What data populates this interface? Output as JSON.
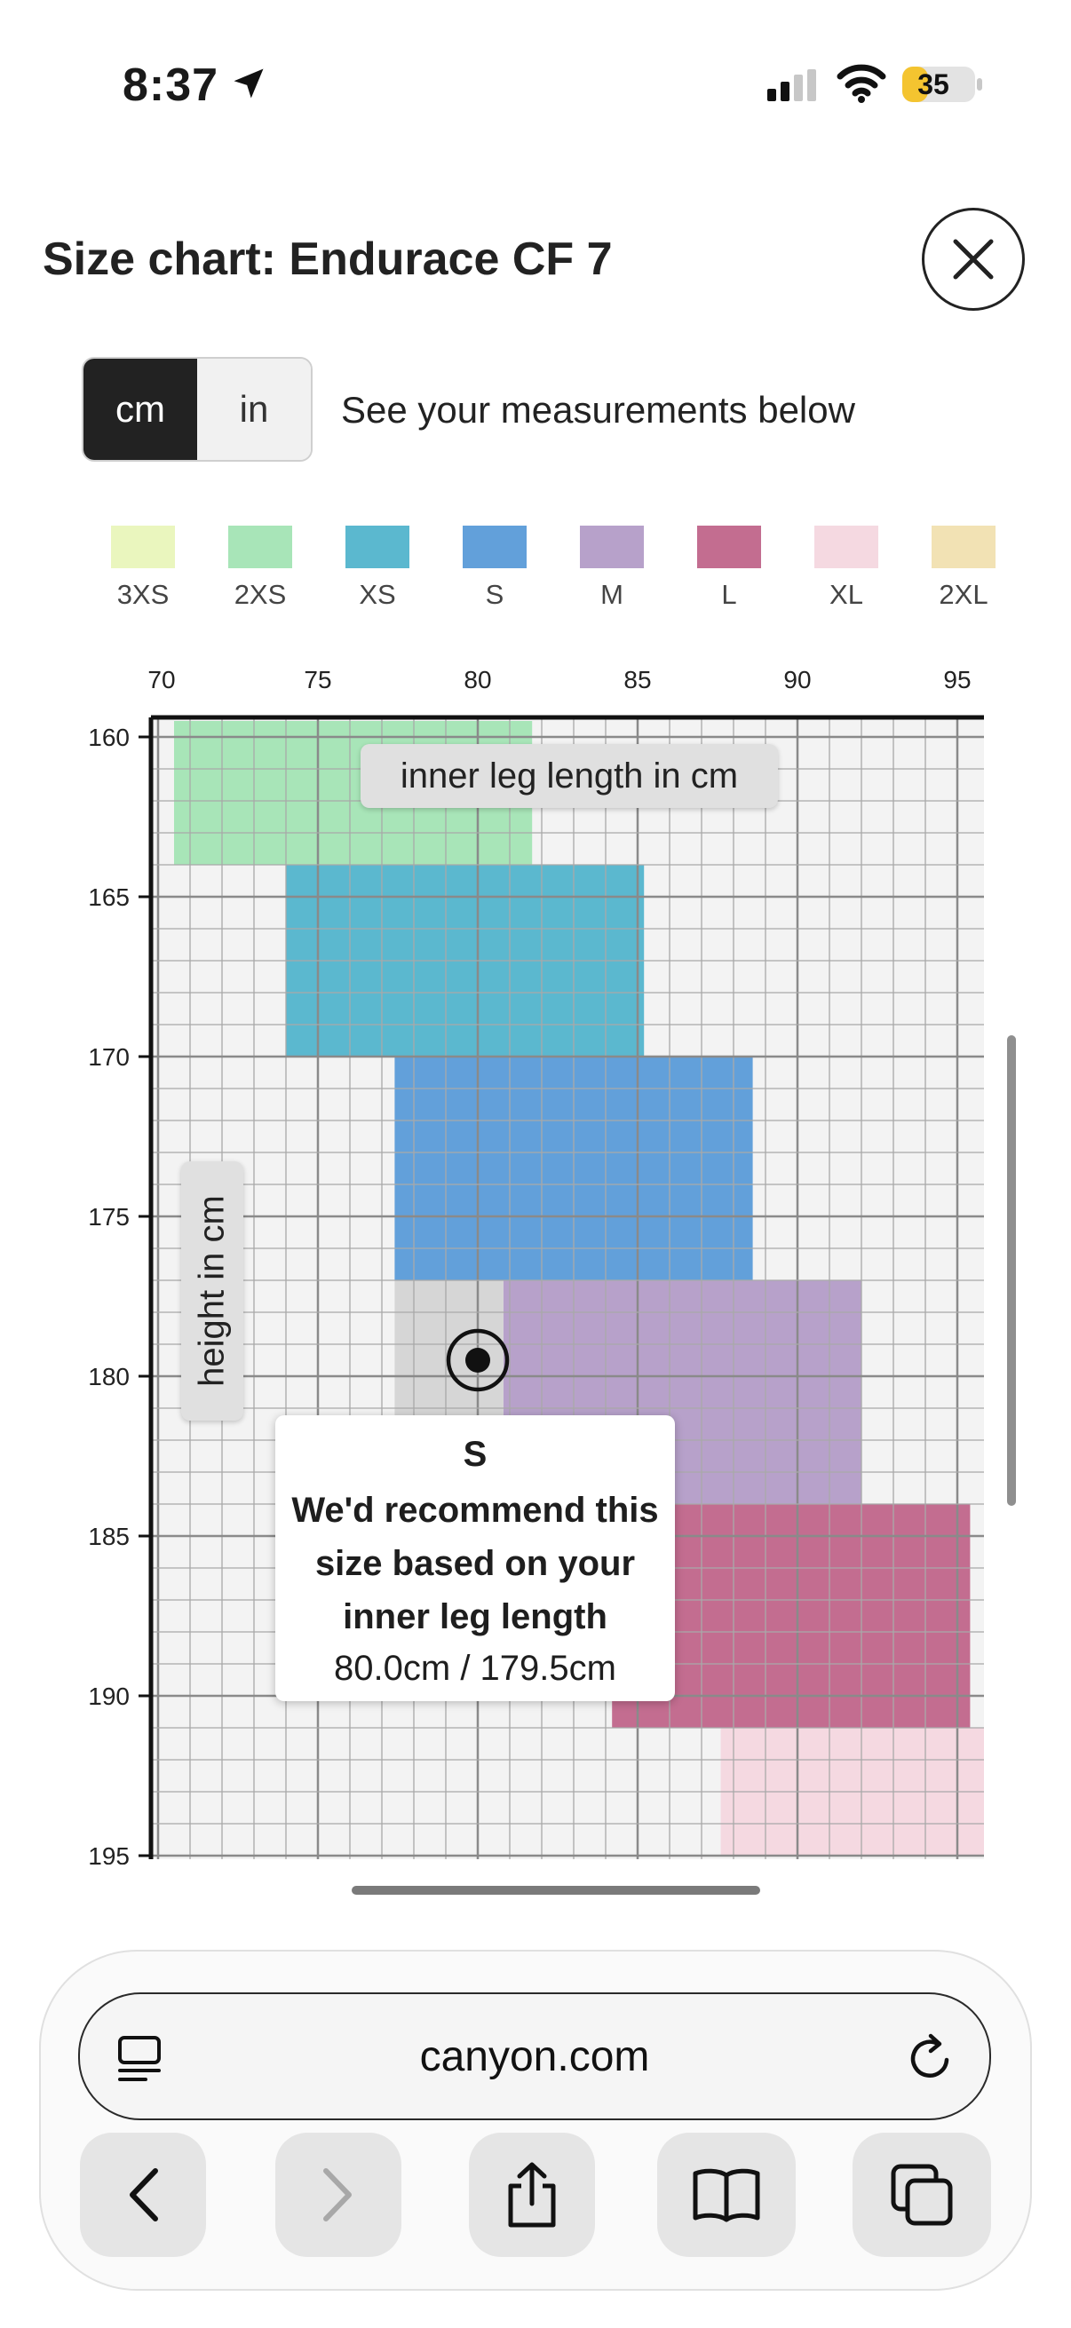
{
  "status_bar": {
    "time": "8:37",
    "battery": "35",
    "battery_level": 0.35
  },
  "header": {
    "title": "Size chart: Endurace CF 7"
  },
  "units": {
    "options": [
      "cm",
      "in"
    ],
    "selected": "cm",
    "note": "See your measurements below"
  },
  "legend": [
    {
      "size": "3XS",
      "color": "#eaf6be"
    },
    {
      "size": "2XS",
      "color": "#a8e5b8"
    },
    {
      "size": "XS",
      "color": "#5bb8cf"
    },
    {
      "size": "S",
      "color": "#62a0da"
    },
    {
      "size": "M",
      "color": "#b7a1ca"
    },
    {
      "size": "L",
      "color": "#c36d90"
    },
    {
      "size": "XL",
      "color": "#f5d9e1"
    },
    {
      "size": "2XL",
      "color": "#f2e2b4"
    }
  ],
  "chart_data": {
    "type": "heatmap",
    "xlabel": "inner leg length in cm",
    "ylabel": "height in cm",
    "x_ticks": [
      70,
      75,
      80,
      85,
      90,
      95
    ],
    "x_tick_labels": [
      "70",
      "75",
      "80",
      "85",
      "90",
      "95"
    ],
    "y_ticks": [
      160,
      165,
      170,
      175,
      180,
      185,
      190,
      195
    ],
    "xlim": [
      70,
      96
    ],
    "ylim": [
      159.5,
      195
    ],
    "regions": [
      {
        "size": "2XS",
        "x": [
          70.5,
          81.7
        ],
        "y": [
          159.5,
          164
        ]
      },
      {
        "size": "XS",
        "x": [
          74,
          85.2
        ],
        "y": [
          164,
          170
        ]
      },
      {
        "size": "S",
        "x": [
          77.4,
          88.6
        ],
        "y": [
          170,
          177
        ]
      },
      {
        "size": "M",
        "x": [
          80.8,
          92
        ],
        "y": [
          177,
          184
        ]
      },
      {
        "size": "L",
        "x": [
          84.2,
          95.4
        ],
        "y": [
          184,
          191
        ]
      },
      {
        "size": "XL",
        "x": [
          87.6,
          96
        ],
        "y": [
          191,
          195
        ]
      }
    ],
    "highlight_cell": {
      "x": [
        77.4,
        80.8
      ],
      "y": [
        177,
        182
      ]
    },
    "marker": {
      "x": 80.0,
      "y": 179.5
    },
    "grid": true
  },
  "tooltip": {
    "size": "S",
    "message": "We'd recommend this size based on your inner leg length",
    "measurement": "80.0cm / 179.5cm"
  },
  "browser": {
    "url": "canyon.com"
  }
}
